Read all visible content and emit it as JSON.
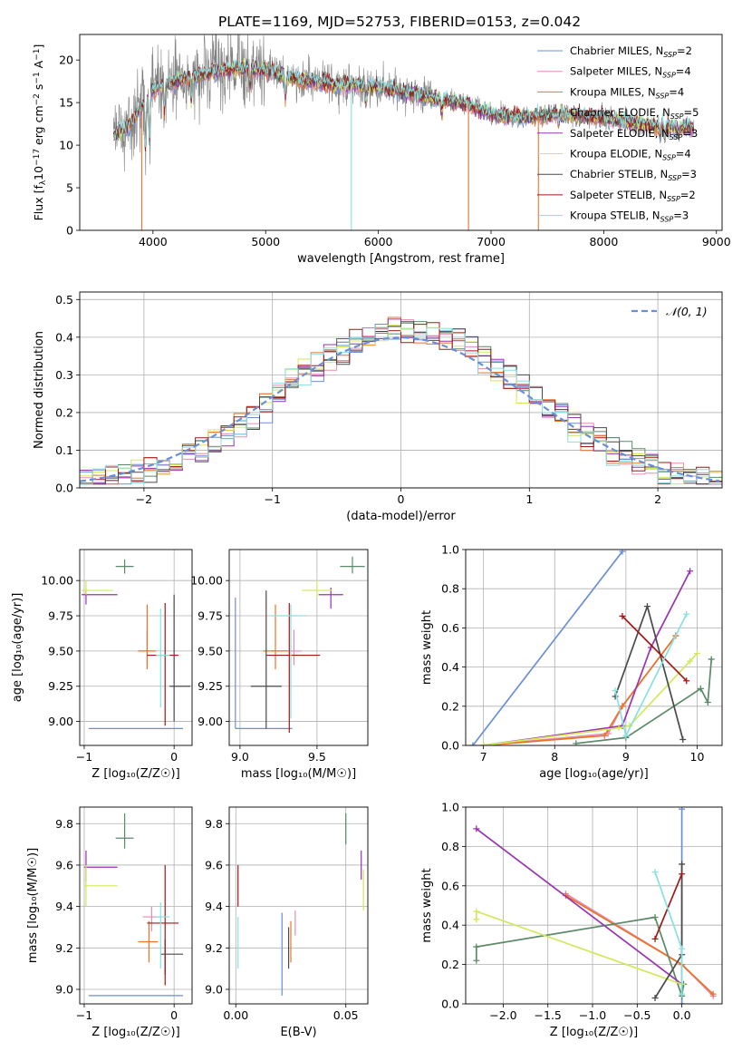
{
  "figure": {
    "title": "PLATE=1169, MJD=52753, FIBERID=0153, z=0.042"
  },
  "colors": {
    "Chabrier MILES": "#6a8fd8",
    "Salpeter MILES": "#e68cb0",
    "Kroupa MILES": "#e8742a",
    "Chabrier ELODIE": "#5a8a68",
    "Salpeter ELODIE": "#9a33b0",
    "Kroupa ELODIE": "#d3e85a",
    "Chabrier STELIB": "#4a4a4a",
    "Salpeter STELIB": "#a01818",
    "Kroupa STELIB": "#88e0e0",
    "data": "#808080",
    "normal": "#6a8fd8"
  },
  "chart_data": [
    {
      "id": "spectrum",
      "type": "line",
      "xlabel": "wavelength [Angstrom, rest frame]",
      "ylabel_parts": [
        "Flux [f",
        "λ",
        "10",
        "−17",
        " erg cm",
        "−2",
        " s",
        "−1",
        " A",
        "−1",
        "]"
      ],
      "xlim": [
        3350,
        9050
      ],
      "ylim": [
        0,
        23
      ],
      "xticks": [
        4000,
        5000,
        6000,
        7000,
        8000,
        9000
      ],
      "yticks": [
        0,
        5,
        10,
        15,
        20
      ],
      "xrange_data": [
        3650,
        8800
      ],
      "continuum": [
        [
          3650,
          11
        ],
        [
          3800,
          12.5
        ],
        [
          3900,
          14.5
        ],
        [
          4000,
          16.5
        ],
        [
          4200,
          17.5
        ],
        [
          4500,
          18.5
        ],
        [
          4800,
          19
        ],
        [
          5000,
          18.8
        ],
        [
          5300,
          17.7
        ],
        [
          5600,
          17.2
        ],
        [
          6000,
          16.8
        ],
        [
          6400,
          15.8
        ],
        [
          6800,
          14.8
        ],
        [
          7000,
          13.5
        ],
        [
          7300,
          13.3
        ],
        [
          7600,
          13.6
        ],
        [
          8000,
          13.2
        ],
        [
          8500,
          12.2
        ],
        [
          8800,
          12
        ]
      ],
      "dropouts": [
        [
          3900,
          "Kroupa MILES"
        ],
        [
          5760,
          "Kroupa STELIB"
        ],
        [
          6800,
          "Kroupa MILES"
        ],
        [
          7420,
          "Kroupa MILES"
        ]
      ],
      "legend": [
        {
          "name": "Chabrier MILES",
          "n": "2"
        },
        {
          "name": "Salpeter MILES",
          "n": "4"
        },
        {
          "name": "Kroupa MILES",
          "n": "4"
        },
        {
          "name": "Chabrier ELODIE",
          "n": "5"
        },
        {
          "name": "Salpeter ELODIE",
          "n": "3"
        },
        {
          "name": "Kroupa ELODIE",
          "n": "4"
        },
        {
          "name": "Chabrier STELIB",
          "n": "3"
        },
        {
          "name": "Salpeter STELIB",
          "n": "2"
        },
        {
          "name": "Kroupa STELIB",
          "n": "3"
        }
      ],
      "legend_prefix": ", N",
      "legend_sub": "SSP",
      "legend_eq": "=",
      "legend_position": "top-right",
      "grid": false
    },
    {
      "id": "residuals",
      "type": "histogram",
      "xlabel": "(data-model)/error",
      "ylabel": "Normed distribution",
      "xlim": [
        -2.5,
        2.5
      ],
      "ylim": [
        0,
        0.52
      ],
      "xticks": [
        -2,
        -1,
        0,
        1,
        2
      ],
      "yticks": [
        0,
        0.1,
        0.2,
        0.3,
        0.4,
        0.5
      ],
      "legend": [
        {
          "name": "𝒩(0, 1)"
        }
      ],
      "legend_position": "top-right",
      "grid": true
    },
    {
      "id": "age_vs_Z",
      "type": "errorbar",
      "xlabel": "Z [log₁₀(Z/Z☉)]",
      "ylabel": "age  [log₁₀(age/yr)]",
      "xlim": [
        -1.05,
        0.2
      ],
      "ylim": [
        8.83,
        10.22
      ],
      "xticks": [
        -1,
        0
      ],
      "yticks": [
        9.0,
        9.25,
        9.5,
        9.75,
        10.0
      ],
      "grid": true,
      "points": [
        {
          "s": "Chabrier MILES",
          "x": 0,
          "y": 8.95,
          "xe": [
            0.95,
            0.1
          ],
          "ye": [
            0,
            0
          ]
        },
        {
          "s": "Salpeter MILES",
          "x": -0.3,
          "y": 9.5,
          "xe": [
            0.1,
            0.05
          ],
          "ye": [
            0.1,
            0.15
          ]
        },
        {
          "s": "Kroupa MILES",
          "x": -0.3,
          "y": 9.5,
          "xe": [
            0.1,
            0.1
          ],
          "ye": [
            0.13,
            0.33
          ]
        },
        {
          "s": "Chabrier ELODIE",
          "x": -0.55,
          "y": 10.1,
          "xe": [
            0.1,
            0.1
          ],
          "ye": [
            0.05,
            0.05
          ]
        },
        {
          "s": "Salpeter ELODIE",
          "x": -0.98,
          "y": 9.9,
          "xe": [
            0.05,
            0.35
          ],
          "ye": [
            0.07,
            0.03
          ]
        },
        {
          "s": "Kroupa ELODIE",
          "x": -0.98,
          "y": 9.93,
          "xe": [
            0.05,
            0.3
          ],
          "ye": [
            0.03,
            0.07
          ]
        },
        {
          "s": "Chabrier STELIB",
          "x": 0,
          "y": 9.25,
          "xe": [
            0.05,
            0.18
          ],
          "ye": [
            0.25,
            0.65
          ]
        },
        {
          "s": "Salpeter STELIB",
          "x": -0.1,
          "y": 9.47,
          "xe": [
            0.2,
            0.15
          ],
          "ye": [
            0.5,
            0.37
          ]
        },
        {
          "s": "Kroupa STELIB",
          "x": -0.15,
          "y": 9.47,
          "xe": [
            0.05,
            0.1
          ],
          "ye": [
            0.37,
            0.33
          ]
        }
      ]
    },
    {
      "id": "age_vs_mass",
      "type": "errorbar",
      "xlabel": "mass [log₁₀(M/M☉)]",
      "ylabel": "",
      "xlim": [
        8.93,
        9.83
      ],
      "ylim": [
        8.83,
        10.22
      ],
      "xticks": [
        9.0,
        9.5
      ],
      "yticks": [
        9.0,
        9.25,
        9.5,
        9.75,
        10.0
      ],
      "grid": true,
      "points": [
        {
          "s": "Chabrier MILES",
          "x": 8.97,
          "y": 8.95,
          "xe": [
            0,
            0.37
          ],
          "ye": [
            0,
            0.93
          ]
        },
        {
          "s": "Salpeter MILES",
          "x": 9.35,
          "y": 9.5,
          "xe": [
            0.15,
            0.05
          ],
          "ye": [
            0.1,
            0.15
          ]
        },
        {
          "s": "Kroupa MILES",
          "x": 9.23,
          "y": 9.5,
          "xe": [
            0.08,
            0.08
          ],
          "ye": [
            0.13,
            0.33
          ]
        },
        {
          "s": "Chabrier ELODIE",
          "x": 9.73,
          "y": 10.1,
          "xe": [
            0.08,
            0.08
          ],
          "ye": [
            0.05,
            0.07
          ]
        },
        {
          "s": "Salpeter ELODIE",
          "x": 9.59,
          "y": 9.9,
          "xe": [
            0.08,
            0.08
          ],
          "ye": [
            0.1,
            0.05
          ]
        },
        {
          "s": "Kroupa ELODIE",
          "x": 9.5,
          "y": 9.93,
          "xe": [
            0.1,
            0.1
          ],
          "ye": [
            0.05,
            0.07
          ]
        },
        {
          "s": "Chabrier STELIB",
          "x": 9.17,
          "y": 9.25,
          "xe": [
            0.1,
            0.1
          ],
          "ye": [
            0.3,
            0.68
          ]
        },
        {
          "s": "Salpeter STELIB",
          "x": 9.32,
          "y": 9.47,
          "xe": [
            0.15,
            0.2
          ],
          "ye": [
            0.55,
            0.37
          ]
        },
        {
          "s": "Kroupa STELIB",
          "x": 9.33,
          "y": 9.75,
          "xe": [
            0.13,
            0.1
          ],
          "ye": [
            0.73,
            0.08
          ]
        }
      ]
    },
    {
      "id": "weight_vs_age",
      "type": "line",
      "xlabel": "age  [log₁₀(age/yr)]",
      "ylabel": "mass weight",
      "xlim": [
        6.75,
        10.35
      ],
      "ylim": [
        0,
        1
      ],
      "xticks": [
        7,
        8,
        9,
        10
      ],
      "yticks": [
        0.0,
        0.2,
        0.4,
        0.6,
        0.8,
        1.0
      ],
      "grid": true,
      "series": [
        {
          "s": "Chabrier MILES",
          "pts": [
            [
              6.85,
              0.0
            ],
            [
              8.95,
              0.99
            ]
          ]
        },
        {
          "s": "Salpeter MILES",
          "pts": [
            [
              7.0,
              0.0
            ],
            [
              8.75,
              0.06
            ],
            [
              8.95,
              0.2
            ],
            [
              9.7,
              0.56
            ]
          ]
        },
        {
          "s": "Kroupa MILES",
          "pts": [
            [
              7.0,
              0.0
            ],
            [
              8.7,
              0.05
            ],
            [
              8.95,
              0.2
            ],
            [
              9.7,
              0.56
            ]
          ]
        },
        {
          "s": "Chabrier ELODIE",
          "pts": [
            [
              8.3,
              0.01
            ],
            [
              9.0,
              0.04
            ],
            [
              10.05,
              0.29
            ],
            [
              10.15,
              0.22
            ],
            [
              10.2,
              0.44
            ]
          ]
        },
        {
          "s": "Salpeter ELODIE",
          "pts": [
            [
              7.0,
              0.0
            ],
            [
              8.95,
              0.1
            ],
            [
              9.35,
              0.5
            ],
            [
              9.9,
              0.89
            ]
          ]
        },
        {
          "s": "Kroupa ELODIE",
          "pts": [
            [
              7.0,
              0.0
            ],
            [
              8.9,
              0.09
            ],
            [
              9.05,
              0.1
            ],
            [
              9.9,
              0.43
            ],
            [
              10.0,
              0.47
            ]
          ]
        },
        {
          "s": "Chabrier STELIB",
          "pts": [
            [
              8.85,
              0.25
            ],
            [
              9.3,
              0.71
            ],
            [
              9.8,
              0.03
            ]
          ]
        },
        {
          "s": "Salpeter STELIB",
          "pts": [
            [
              8.95,
              0.66
            ],
            [
              9.85,
              0.33
            ]
          ]
        },
        {
          "s": "Kroupa STELIB",
          "pts": [
            [
              8.85,
              0.28
            ],
            [
              9.0,
              0.05
            ],
            [
              9.85,
              0.67
            ]
          ]
        }
      ]
    },
    {
      "id": "mass_vs_Z",
      "type": "errorbar",
      "xlabel": "Z [log₁₀(Z/Z☉)]",
      "ylabel": "mass [log₁₀(M/M☉)]",
      "xlim": [
        -1.05,
        0.2
      ],
      "ylim": [
        8.93,
        9.88
      ],
      "xticks": [
        -1,
        0
      ],
      "yticks": [
        9.0,
        9.2,
        9.4,
        9.6,
        9.8
      ],
      "grid": true,
      "points": [
        {
          "s": "Chabrier MILES",
          "x": 0,
          "y": 8.97,
          "xe": [
            0.95,
            0.1
          ],
          "ye": [
            0,
            0
          ]
        },
        {
          "s": "Salpeter MILES",
          "x": -0.25,
          "y": 9.35,
          "xe": [
            0.1,
            0.1
          ],
          "ye": [
            0.07,
            0.05
          ]
        },
        {
          "s": "Kroupa MILES",
          "x": -0.28,
          "y": 9.23,
          "xe": [
            0.12,
            0.1
          ],
          "ye": [
            0.1,
            0.1
          ]
        },
        {
          "s": "Chabrier ELODIE",
          "x": -0.55,
          "y": 9.73,
          "xe": [
            0.1,
            0.1
          ],
          "ye": [
            0.05,
            0.12
          ]
        },
        {
          "s": "Salpeter ELODIE",
          "x": -0.98,
          "y": 9.59,
          "xe": [
            0.02,
            0.35
          ],
          "ye": [
            0.07,
            0.08
          ]
        },
        {
          "s": "Kroupa ELODIE",
          "x": -0.98,
          "y": 9.5,
          "xe": [
            0.02,
            0.35
          ],
          "ye": [
            0.1,
            0.1
          ]
        },
        {
          "s": "Chabrier STELIB",
          "x": -0.1,
          "y": 9.17,
          "xe": [
            0.05,
            0.2
          ],
          "ye": [
            0.1,
            0.07
          ]
        },
        {
          "s": "Salpeter STELIB",
          "x": -0.1,
          "y": 9.32,
          "xe": [
            0.2,
            0.15
          ],
          "ye": [
            0.3,
            0.28
          ]
        },
        {
          "s": "Kroupa STELIB",
          "x": -0.15,
          "y": 9.35,
          "xe": [
            0.05,
            0.1
          ],
          "ye": [
            0.25,
            0.07
          ]
        }
      ]
    },
    {
      "id": "mass_vs_EBV",
      "type": "errorbar",
      "xlabel": "E(B-V)",
      "ylabel": "",
      "xlim": [
        -0.003,
        0.06
      ],
      "ylim": [
        8.93,
        9.88
      ],
      "xticks": [
        0.0,
        0.05
      ],
      "yticks": [
        9.0,
        9.2,
        9.4,
        9.6,
        9.8
      ],
      "grid": true,
      "points": [
        {
          "s": "Chabrier MILES",
          "x": 0.021,
          "y": 9.17,
          "xe": [
            0,
            0
          ],
          "ye": [
            0.2,
            0.2
          ]
        },
        {
          "s": "Salpeter MILES",
          "x": 0.027,
          "y": 9.33,
          "xe": [
            0,
            0
          ],
          "ye": [
            0.07,
            0.05
          ]
        },
        {
          "s": "Kroupa MILES",
          "x": 0.025,
          "y": 9.23,
          "xe": [
            0,
            0
          ],
          "ye": [
            0.1,
            0.1
          ]
        },
        {
          "s": "Chabrier ELODIE",
          "x": 0.05,
          "y": 9.77,
          "xe": [
            0,
            0
          ],
          "ye": [
            0.07,
            0.08
          ]
        },
        {
          "s": "Salpeter ELODIE",
          "x": 0.057,
          "y": 9.6,
          "xe": [
            0,
            0
          ],
          "ye": [
            0.07,
            0.07
          ]
        },
        {
          "s": "Kroupa ELODIE",
          "x": 0.058,
          "y": 9.5,
          "xe": [
            0,
            0
          ],
          "ye": [
            0.12,
            0.08
          ]
        },
        {
          "s": "Chabrier STELIB",
          "x": 0.024,
          "y": 9.2,
          "xe": [
            0,
            0
          ],
          "ye": [
            0.1,
            0.1
          ]
        },
        {
          "s": "Salpeter STELIB",
          "x": 0.001,
          "y": 9.5,
          "xe": [
            0,
            0
          ],
          "ye": [
            0.1,
            0.1
          ]
        },
        {
          "s": "Kroupa STELIB",
          "x": 0.001,
          "y": 9.25,
          "xe": [
            0,
            0
          ],
          "ye": [
            0.15,
            0.1
          ]
        }
      ]
    },
    {
      "id": "weight_vs_Z",
      "type": "line",
      "xlabel": "Z [log₁₀(Z/Z☉)]",
      "ylabel": "mass weight",
      "xlim": [
        -2.42,
        0.45
      ],
      "ylim": [
        0,
        1
      ],
      "xticks": [
        -2.0,
        -1.5,
        -1.0,
        -0.5,
        0.0
      ],
      "yticks": [
        0.0,
        0.2,
        0.4,
        0.6,
        0.8,
        1.0
      ],
      "grid": true,
      "series": [
        {
          "s": "Chabrier MILES",
          "pts": [
            [
              0.0,
              0.0
            ],
            [
              0.0,
              0.99
            ]
          ]
        },
        {
          "s": "Salpeter MILES",
          "pts": [
            [
              -1.3,
              0.56
            ],
            [
              0.0,
              0.2
            ],
            [
              0.35,
              0.04
            ]
          ]
        },
        {
          "s": "Kroupa MILES",
          "pts": [
            [
              -1.3,
              0.55
            ],
            [
              0.0,
              0.2
            ],
            [
              0.35,
              0.05
            ]
          ]
        },
        {
          "s": "Chabrier ELODIE",
          "pts": [
            [
              -2.3,
              0.22
            ],
            [
              -2.3,
              0.29
            ],
            [
              -0.3,
              0.44
            ],
            [
              0.0,
              0.04
            ],
            [
              0.02,
              0.1
            ]
          ]
        },
        {
          "s": "Salpeter ELODIE",
          "pts": [
            [
              -2.3,
              0.89
            ],
            [
              0.0,
              0.1
            ]
          ]
        },
        {
          "s": "Kroupa ELODIE",
          "pts": [
            [
              -2.3,
              0.43
            ],
            [
              -2.3,
              0.47
            ],
            [
              0.0,
              0.1
            ]
          ]
        },
        {
          "s": "Chabrier STELIB",
          "pts": [
            [
              -0.3,
              0.03
            ],
            [
              0.0,
              0.25
            ],
            [
              0.0,
              0.71
            ]
          ]
        },
        {
          "s": "Salpeter STELIB",
          "pts": [
            [
              -0.3,
              0.33
            ],
            [
              0.0,
              0.66
            ]
          ]
        },
        {
          "s": "Kroupa STELIB",
          "pts": [
            [
              -0.3,
              0.67
            ],
            [
              0.0,
              0.28
            ],
            [
              0.0,
              0.05
            ]
          ]
        }
      ]
    }
  ]
}
